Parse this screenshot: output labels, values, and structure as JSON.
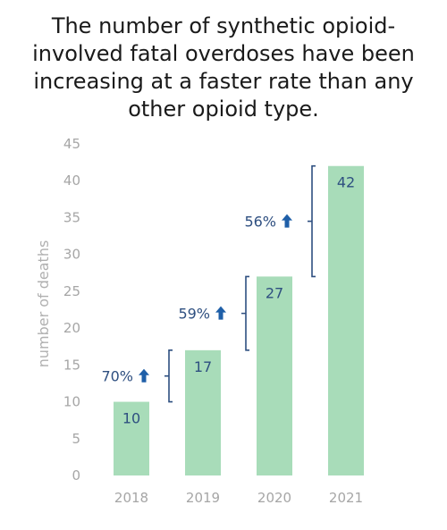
{
  "title_lines": [
    "The number of synthetic opioid-",
    "involved fatal overdoses have been",
    "increasing at a faster rate than any",
    "other opioid type."
  ],
  "chart_data": {
    "type": "bar",
    "categories": [
      "2018",
      "2019",
      "2020",
      "2021"
    ],
    "values": [
      10,
      17,
      27,
      42
    ],
    "data_labels": [
      "10",
      "17",
      "27",
      "42"
    ],
    "title": "The number of synthetic opioid-involved fatal overdoses have been increasing at a faster rate than any other opioid type.",
    "xlabel": "",
    "ylabel": "number of deaths",
    "ylim": [
      0,
      45
    ],
    "yticks": [
      0,
      5,
      10,
      15,
      20,
      25,
      30,
      35,
      40,
      45
    ],
    "grid": false,
    "legend": "none",
    "annotations": [
      {
        "text": "70%",
        "from": 10,
        "to": 17,
        "between": [
          "2018",
          "2019"
        ],
        "icon": "arrow-up-icon"
      },
      {
        "text": "59%",
        "from": 17,
        "to": 27,
        "between": [
          "2019",
          "2020"
        ],
        "icon": "arrow-up-icon"
      },
      {
        "text": "56%",
        "from": 27,
        "to": 42,
        "between": [
          "2020",
          "2021"
        ],
        "icon": "arrow-up-icon"
      }
    ],
    "colors": {
      "bar": "#a8dcb9",
      "label": "#2e4f80",
      "tick": "#a6a6a6",
      "bracket": "#2e4f80"
    }
  }
}
